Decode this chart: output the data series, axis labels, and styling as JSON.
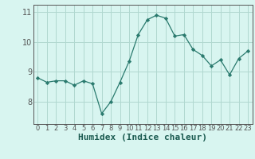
{
  "x": [
    0,
    1,
    2,
    3,
    4,
    5,
    6,
    7,
    8,
    9,
    10,
    11,
    12,
    13,
    14,
    15,
    16,
    17,
    18,
    19,
    20,
    21,
    22,
    23
  ],
  "y": [
    8.8,
    8.65,
    8.7,
    8.7,
    8.55,
    8.7,
    8.6,
    7.6,
    8.0,
    8.65,
    9.35,
    10.25,
    10.75,
    10.9,
    10.8,
    10.2,
    10.25,
    9.75,
    9.55,
    9.2,
    9.4,
    8.9,
    9.45,
    9.7
  ],
  "line_color": "#2a7a6e",
  "marker": "D",
  "marker_size": 2.2,
  "bg_color": "#d8f5f0",
  "grid_color": "#b0d8d0",
  "axis_color": "#555555",
  "xlabel": "Humidex (Indice chaleur)",
  "xlabel_fontsize": 8,
  "yticks": [
    8,
    9,
    10,
    11
  ],
  "xticks": [
    0,
    1,
    2,
    3,
    4,
    5,
    6,
    7,
    8,
    9,
    10,
    11,
    12,
    13,
    14,
    15,
    16,
    17,
    18,
    19,
    20,
    21,
    22,
    23
  ],
  "ylim": [
    7.25,
    11.25
  ],
  "xlim": [
    -0.5,
    23.5
  ],
  "tick_fontsize": 6,
  "ylabel_fontsize": 7
}
